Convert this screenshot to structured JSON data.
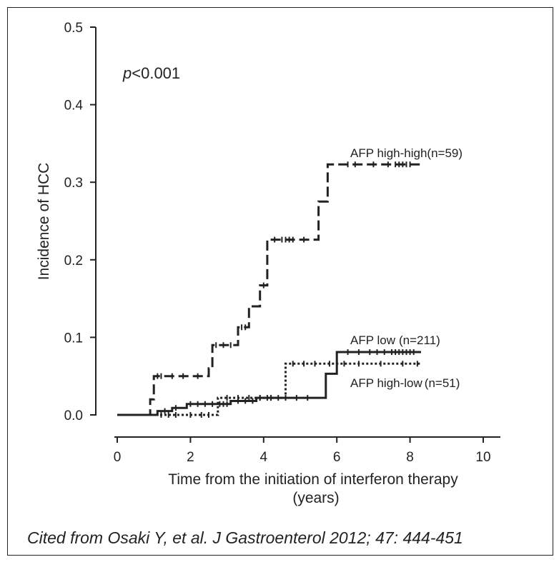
{
  "chart_data": {
    "type": "line",
    "title": "",
    "xlabel_line1": "Time from the initiation of interferon therapy",
    "xlabel_line2": "(years)",
    "ylabel": "Incidence of HCC",
    "xlim": [
      0,
      10
    ],
    "ylim": [
      0,
      0.5
    ],
    "x_ticks": [
      "0",
      "2",
      "4",
      "6",
      "8",
      "10"
    ],
    "y_ticks": [
      "0.0",
      "0.1",
      "0.2",
      "0.3",
      "0.4",
      "0.5"
    ],
    "grid": false,
    "annotation_p_italic": "p",
    "annotation_p_rest": "<0.001",
    "series": [
      {
        "name": "AFP high-high",
        "n_label": "(n=59)",
        "style": "dashed",
        "color": "#222222",
        "steps": [
          [
            0,
            0
          ],
          [
            0.9,
            0
          ],
          [
            0.9,
            0.02
          ],
          [
            1.0,
            0.02
          ],
          [
            1.0,
            0.05
          ],
          [
            2.5,
            0.05
          ],
          [
            2.5,
            0.06
          ],
          [
            2.6,
            0.06
          ],
          [
            2.6,
            0.09
          ],
          [
            3.3,
            0.09
          ],
          [
            3.3,
            0.113
          ],
          [
            3.6,
            0.113
          ],
          [
            3.6,
            0.14
          ],
          [
            3.9,
            0.14
          ],
          [
            3.9,
            0.167
          ],
          [
            4.1,
            0.167
          ],
          [
            4.1,
            0.226
          ],
          [
            5.5,
            0.226
          ],
          [
            5.5,
            0.275
          ],
          [
            5.75,
            0.275
          ],
          [
            5.75,
            0.323
          ],
          [
            8.3,
            0.323
          ]
        ],
        "censor_x": [
          1.1,
          1.2,
          1.5,
          1.8,
          2.2,
          2.7,
          2.9,
          3.1,
          3.4,
          3.5,
          4.0,
          4.3,
          4.5,
          4.6,
          4.7,
          4.8,
          5.1,
          6.3,
          6.5,
          7.0,
          7.4,
          7.6,
          7.7,
          7.8,
          7.9,
          8.0
        ]
      },
      {
        "name": "AFP low",
        "n_label": "(n=211)",
        "style": "solid",
        "color": "#222222",
        "steps": [
          [
            0,
            0
          ],
          [
            1.1,
            0
          ],
          [
            1.1,
            0.005
          ],
          [
            1.5,
            0.005
          ],
          [
            1.5,
            0.009
          ],
          [
            1.9,
            0.009
          ],
          [
            1.9,
            0.014
          ],
          [
            3.1,
            0.014
          ],
          [
            3.1,
            0.018
          ],
          [
            3.8,
            0.018
          ],
          [
            3.8,
            0.022
          ],
          [
            5.7,
            0.022
          ],
          [
            5.7,
            0.053
          ],
          [
            6.0,
            0.053
          ],
          [
            6.0,
            0.081
          ],
          [
            8.3,
            0.081
          ]
        ],
        "censor_x": [
          1.3,
          1.6,
          2.0,
          2.2,
          2.4,
          2.6,
          2.8,
          2.9,
          3.0,
          3.3,
          3.5,
          3.7,
          3.9,
          4.1,
          4.2,
          4.4,
          4.6,
          4.9,
          5.2,
          6.3,
          6.6,
          6.9,
          7.1,
          7.3,
          7.5,
          7.6,
          7.7,
          7.8,
          7.9,
          8.0,
          8.1
        ]
      },
      {
        "name": "AFP high-low",
        "n_label": "(n=51)",
        "style": "dotted",
        "color": "#222222",
        "steps": [
          [
            0,
            0
          ],
          [
            2.75,
            0
          ],
          [
            2.75,
            0.022
          ],
          [
            4.6,
            0.022
          ],
          [
            4.6,
            0.066
          ],
          [
            8.3,
            0.066
          ]
        ],
        "censor_x": [
          1.2,
          1.4,
          1.6,
          2.0,
          2.3,
          2.5,
          3.0,
          3.3,
          3.6,
          3.9,
          4.2,
          4.8,
          5.1,
          5.4,
          5.8,
          6.2,
          6.6,
          7.2,
          7.8,
          8.2
        ]
      }
    ]
  },
  "citation": "Cited from Osaki Y, et al. J Gastroenterol 2012; 47: 444-451"
}
